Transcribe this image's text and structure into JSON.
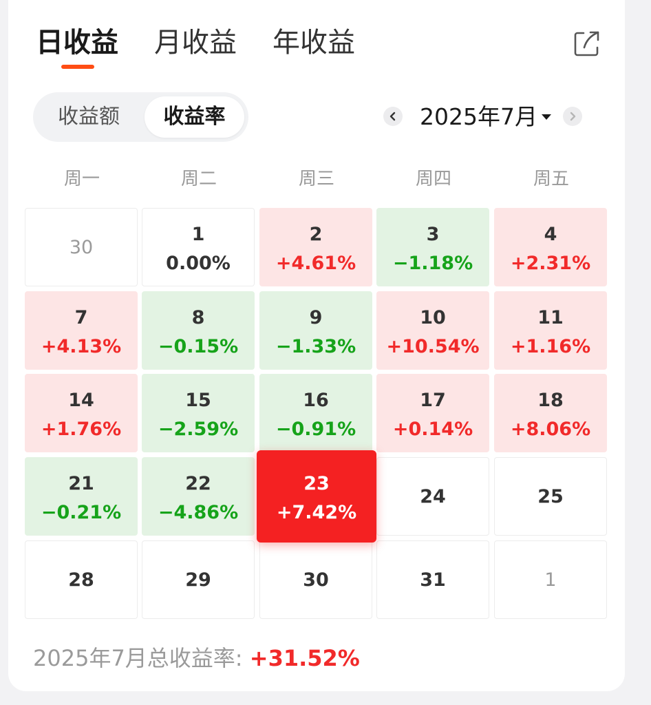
{
  "tabs": [
    {
      "label": "日收益",
      "active": true
    },
    {
      "label": "月收益",
      "active": false
    },
    {
      "label": "年收益",
      "active": false
    }
  ],
  "segment": {
    "amount_label": "收益额",
    "rate_label": "收益率",
    "selected": "rate"
  },
  "month_picker": {
    "label": "2025年7月"
  },
  "weekdays": [
    "周一",
    "周二",
    "周三",
    "周四",
    "周五"
  ],
  "calendar": [
    [
      {
        "day": "30",
        "value": "",
        "state": "muted"
      },
      {
        "day": "1",
        "value": "0.00%",
        "state": "flat"
      },
      {
        "day": "2",
        "value": "+4.61%",
        "state": "up"
      },
      {
        "day": "3",
        "value": "−1.18%",
        "state": "down"
      },
      {
        "day": "4",
        "value": "+2.31%",
        "state": "up"
      }
    ],
    [
      {
        "day": "7",
        "value": "+4.13%",
        "state": "up"
      },
      {
        "day": "8",
        "value": "−0.15%",
        "state": "down"
      },
      {
        "day": "9",
        "value": "−1.33%",
        "state": "down"
      },
      {
        "day": "10",
        "value": "+10.54%",
        "state": "up"
      },
      {
        "day": "11",
        "value": "+1.16%",
        "state": "up"
      }
    ],
    [
      {
        "day": "14",
        "value": "+1.76%",
        "state": "up"
      },
      {
        "day": "15",
        "value": "−2.59%",
        "state": "down"
      },
      {
        "day": "16",
        "value": "−0.91%",
        "state": "down"
      },
      {
        "day": "17",
        "value": "+0.14%",
        "state": "up"
      },
      {
        "day": "18",
        "value": "+8.06%",
        "state": "up"
      }
    ],
    [
      {
        "day": "21",
        "value": "−0.21%",
        "state": "down"
      },
      {
        "day": "22",
        "value": "−4.86%",
        "state": "down"
      },
      {
        "day": "23",
        "value": "+7.42%",
        "state": "selected"
      },
      {
        "day": "24",
        "value": "",
        "state": "empty"
      },
      {
        "day": "25",
        "value": "",
        "state": "empty"
      }
    ],
    [
      {
        "day": "28",
        "value": "",
        "state": "empty"
      },
      {
        "day": "29",
        "value": "",
        "state": "empty"
      },
      {
        "day": "30",
        "value": "",
        "state": "empty"
      },
      {
        "day": "31",
        "value": "",
        "state": "empty"
      },
      {
        "day": "1",
        "value": "",
        "state": "muted"
      }
    ]
  ],
  "summary": {
    "label": "2025年7月总收益率: ",
    "value": "+31.52%"
  },
  "colors": {
    "accent": "#ff4d14",
    "up": "#f12a2a",
    "down": "#16a31a",
    "up_bg": "#fde5e5",
    "down_bg": "#e3f3e3",
    "selected_bg": "#f42122"
  },
  "icons": {
    "share": "share-icon",
    "prev": "chevron-left-icon",
    "next": "chevron-right-icon",
    "dropdown": "caret-down-icon"
  }
}
